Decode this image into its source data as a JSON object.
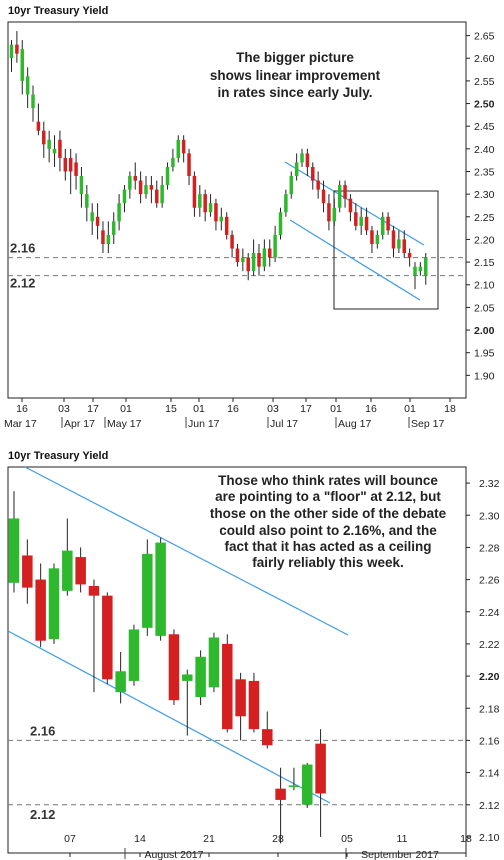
{
  "chart_data": [
    {
      "type": "candlestick",
      "title": "10yr Treasury Yield",
      "xlabel": "",
      "ylabel": "",
      "ylim": [
        1.85,
        2.68
      ],
      "y_ticks": [
        "1.90",
        "1.95",
        "2.00",
        "2.05",
        "2.10",
        "2.15",
        "2.20",
        "2.25",
        "2.30",
        "2.35",
        "2.40",
        "2.45",
        "2.50",
        "2.55",
        "2.60",
        "2.65"
      ],
      "y_ticks_bold": [
        "2.00",
        "2.50"
      ],
      "x_day_ticks": [
        "16",
        "03",
        "17",
        "01",
        "15",
        "01",
        "16",
        "03",
        "17",
        "01",
        "16",
        "01",
        "18"
      ],
      "x_month_labels": [
        "Mar 17",
        "Apr 17",
        "May 17",
        "Jun 17",
        "Jul 17",
        "Aug 17",
        "Sep 17"
      ],
      "annotation": [
        "The bigger picture",
        "shows linear improvement",
        "in rates since early July."
      ],
      "levels": [
        {
          "label": "2.16",
          "value": 2.16
        },
        {
          "label": "2.12",
          "value": 2.12
        }
      ],
      "candles": [
        {
          "o": 2.6,
          "c": 2.63,
          "h": 2.64,
          "l": 2.57
        },
        {
          "o": 2.63,
          "c": 2.61,
          "h": 2.66,
          "l": 2.59
        },
        {
          "o": 2.55,
          "c": 2.62,
          "h": 2.64,
          "l": 2.52
        },
        {
          "o": 2.52,
          "c": 2.56,
          "h": 2.58,
          "l": 2.49
        },
        {
          "o": 2.49,
          "c": 2.52,
          "h": 2.54,
          "l": 2.46
        },
        {
          "o": 2.46,
          "c": 2.44,
          "h": 2.5,
          "l": 2.43
        },
        {
          "o": 2.44,
          "c": 2.41,
          "h": 2.46,
          "l": 2.38
        },
        {
          "o": 2.4,
          "c": 2.42,
          "h": 2.44,
          "l": 2.37
        },
        {
          "o": 2.39,
          "c": 2.4,
          "h": 2.43,
          "l": 2.36
        },
        {
          "o": 2.42,
          "c": 2.38,
          "h": 2.44,
          "l": 2.35
        },
        {
          "o": 2.38,
          "c": 2.35,
          "h": 2.4,
          "l": 2.33
        },
        {
          "o": 2.38,
          "c": 2.35,
          "h": 2.4,
          "l": 2.3
        },
        {
          "o": 2.37,
          "c": 2.34,
          "h": 2.39,
          "l": 2.31
        },
        {
          "o": 2.3,
          "c": 2.34,
          "h": 2.36,
          "l": 2.27
        },
        {
          "o": 2.27,
          "c": 2.3,
          "h": 2.32,
          "l": 2.24
        },
        {
          "o": 2.24,
          "c": 2.26,
          "h": 2.28,
          "l": 2.21
        },
        {
          "o": 2.25,
          "c": 2.23,
          "h": 2.28,
          "l": 2.2
        },
        {
          "o": 2.22,
          "c": 2.19,
          "h": 2.24,
          "l": 2.17
        },
        {
          "o": 2.19,
          "c": 2.21,
          "h": 2.24,
          "l": 2.17
        },
        {
          "o": 2.21,
          "c": 2.24,
          "h": 2.26,
          "l": 2.19
        },
        {
          "o": 2.24,
          "c": 2.28,
          "h": 2.3,
          "l": 2.22
        },
        {
          "o": 2.28,
          "c": 2.31,
          "h": 2.32,
          "l": 2.26
        },
        {
          "o": 2.31,
          "c": 2.34,
          "h": 2.35,
          "l": 2.29
        },
        {
          "o": 2.34,
          "c": 2.33,
          "h": 2.37,
          "l": 2.31
        },
        {
          "o": 2.33,
          "c": 2.3,
          "h": 2.35,
          "l": 2.28
        },
        {
          "o": 2.3,
          "c": 2.32,
          "h": 2.34,
          "l": 2.29
        },
        {
          "o": 2.32,
          "c": 2.31,
          "h": 2.34,
          "l": 2.28
        },
        {
          "o": 2.31,
          "c": 2.28,
          "h": 2.33,
          "l": 2.27
        },
        {
          "o": 2.28,
          "c": 2.32,
          "h": 2.34,
          "l": 2.27
        },
        {
          "o": 2.32,
          "c": 2.36,
          "h": 2.37,
          "l": 2.31
        },
        {
          "o": 2.36,
          "c": 2.38,
          "h": 2.4,
          "l": 2.35
        },
        {
          "o": 2.38,
          "c": 2.42,
          "h": 2.43,
          "l": 2.37
        },
        {
          "o": 2.42,
          "c": 2.39,
          "h": 2.43,
          "l": 2.37
        },
        {
          "o": 2.39,
          "c": 2.34,
          "h": 2.4,
          "l": 2.32
        },
        {
          "o": 2.34,
          "c": 2.27,
          "h": 2.35,
          "l": 2.25
        },
        {
          "o": 2.27,
          "c": 2.3,
          "h": 2.32,
          "l": 2.25
        },
        {
          "o": 2.3,
          "c": 2.26,
          "h": 2.31,
          "l": 2.24
        },
        {
          "o": 2.26,
          "c": 2.28,
          "h": 2.3,
          "l": 2.25
        },
        {
          "o": 2.28,
          "c": 2.24,
          "h": 2.29,
          "l": 2.22
        },
        {
          "o": 2.24,
          "c": 2.25,
          "h": 2.27,
          "l": 2.22
        },
        {
          "o": 2.25,
          "c": 2.21,
          "h": 2.26,
          "l": 2.2
        },
        {
          "o": 2.21,
          "c": 2.18,
          "h": 2.22,
          "l": 2.16
        },
        {
          "o": 2.18,
          "c": 2.15,
          "h": 2.19,
          "l": 2.14
        },
        {
          "o": 2.15,
          "c": 2.16,
          "h": 2.18,
          "l": 2.13
        },
        {
          "o": 2.16,
          "c": 2.13,
          "h": 2.17,
          "l": 2.11
        },
        {
          "o": 2.13,
          "c": 2.17,
          "h": 2.2,
          "l": 2.12
        },
        {
          "o": 2.17,
          "c": 2.14,
          "h": 2.19,
          "l": 2.12
        },
        {
          "o": 2.14,
          "c": 2.18,
          "h": 2.2,
          "l": 2.13
        },
        {
          "o": 2.18,
          "c": 2.16,
          "h": 2.2,
          "l": 2.14
        },
        {
          "o": 2.16,
          "c": 2.21,
          "h": 2.23,
          "l": 2.15
        },
        {
          "o": 2.21,
          "c": 2.26,
          "h": 2.27,
          "l": 2.2
        },
        {
          "o": 2.26,
          "c": 2.3,
          "h": 2.31,
          "l": 2.25
        },
        {
          "o": 2.3,
          "c": 2.34,
          "h": 2.35,
          "l": 2.29
        },
        {
          "o": 2.34,
          "c": 2.37,
          "h": 2.39,
          "l": 2.33
        },
        {
          "o": 2.37,
          "c": 2.39,
          "h": 2.4,
          "l": 2.36
        },
        {
          "o": 2.39,
          "c": 2.36,
          "h": 2.4,
          "l": 2.34
        },
        {
          "o": 2.36,
          "c": 2.33,
          "h": 2.37,
          "l": 2.31
        },
        {
          "o": 2.33,
          "c": 2.31,
          "h": 2.35,
          "l": 2.29
        },
        {
          "o": 2.31,
          "c": 2.28,
          "h": 2.33,
          "l": 2.26
        },
        {
          "o": 2.28,
          "c": 2.24,
          "h": 2.3,
          "l": 2.22
        },
        {
          "o": 2.24,
          "c": 2.27,
          "h": 2.29,
          "l": 2.23
        },
        {
          "o": 2.27,
          "c": 2.32,
          "h": 2.33,
          "l": 2.26
        },
        {
          "o": 2.32,
          "c": 2.29,
          "h": 2.33,
          "l": 2.27
        },
        {
          "o": 2.29,
          "c": 2.26,
          "h": 2.3,
          "l": 2.24
        },
        {
          "o": 2.26,
          "c": 2.23,
          "h": 2.28,
          "l": 2.22
        },
        {
          "o": 2.23,
          "c": 2.25,
          "h": 2.27,
          "l": 2.21
        },
        {
          "o": 2.25,
          "c": 2.22,
          "h": 2.27,
          "l": 2.21
        },
        {
          "o": 2.22,
          "c": 2.19,
          "h": 2.23,
          "l": 2.17
        },
        {
          "o": 2.19,
          "c": 2.21,
          "h": 2.22,
          "l": 2.18
        },
        {
          "o": 2.21,
          "c": 2.25,
          "h": 2.26,
          "l": 2.2
        },
        {
          "o": 2.25,
          "c": 2.22,
          "h": 2.26,
          "l": 2.21
        },
        {
          "o": 2.22,
          "c": 2.18,
          "h": 2.23,
          "l": 2.16
        },
        {
          "o": 2.18,
          "c": 2.2,
          "h": 2.22,
          "l": 2.17
        },
        {
          "o": 2.2,
          "c": 2.17,
          "h": 2.22,
          "l": 2.16
        },
        {
          "o": 2.17,
          "c": 2.16,
          "h": 2.18,
          "l": 2.14
        },
        {
          "o": 2.12,
          "c": 2.14,
          "h": 2.15,
          "l": 2.09
        },
        {
          "o": 2.13,
          "c": 2.14,
          "h": 2.15,
          "l": 2.12
        },
        {
          "o": 2.12,
          "c": 2.16,
          "h": 2.17,
          "l": 2.1
        }
      ]
    },
    {
      "type": "candlestick",
      "title": "10yr Treasury Yield",
      "xlabel": "",
      "ylabel": "",
      "ylim": [
        2.09,
        2.33
      ],
      "y_ticks": [
        "2.10",
        "2.12",
        "2.14",
        "2.16",
        "2.18",
        "2.20",
        "2.22",
        "2.24",
        "2.26",
        "2.28",
        "2.30",
        "2.32"
      ],
      "y_ticks_bold": [
        "2.20"
      ],
      "x_day_ticks": [
        "07",
        "14",
        "21",
        "28",
        "05",
        "11",
        "18"
      ],
      "x_month_labels": [
        "August 2017",
        "September 2017"
      ],
      "annotation": [
        "Those who think rates will bounce",
        "are pointing to a \"floor\" at 2.12, but",
        "those on the other side of the debate",
        "could also point to 2.16%, and the",
        "fact that it has acted as a ceiling",
        "fairly reliably this week."
      ],
      "levels": [
        {
          "label": "2.16",
          "value": 2.16
        },
        {
          "label": "2.12",
          "value": 2.12
        }
      ],
      "candles": [
        {
          "o": 2.258,
          "c": 2.298,
          "h": 2.315,
          "l": 2.252
        },
        {
          "o": 2.275,
          "c": 2.255,
          "h": 2.285,
          "l": 2.245
        },
        {
          "o": 2.26,
          "c": 2.222,
          "h": 2.27,
          "l": 2.218
        },
        {
          "o": 2.223,
          "c": 2.267,
          "h": 2.27,
          "l": 2.22
        },
        {
          "o": 2.253,
          "c": 2.278,
          "h": 2.298,
          "l": 2.25
        },
        {
          "o": 2.274,
          "c": 2.257,
          "h": 2.28,
          "l": 2.252
        },
        {
          "o": 2.256,
          "c": 2.25,
          "h": 2.26,
          "l": 2.19
        },
        {
          "o": 2.25,
          "c": 2.198,
          "h": 2.252,
          "l": 2.195
        },
        {
          "o": 2.19,
          "c": 2.203,
          "h": 2.215,
          "l": 2.183
        },
        {
          "o": 2.197,
          "c": 2.229,
          "h": 2.232,
          "l": 2.194
        },
        {
          "o": 2.23,
          "c": 2.276,
          "h": 2.285,
          "l": 2.225
        },
        {
          "o": 2.225,
          "c": 2.283,
          "h": 2.286,
          "l": 2.222
        },
        {
          "o": 2.226,
          "c": 2.185,
          "h": 2.229,
          "l": 2.182
        },
        {
          "o": 2.197,
          "c": 2.201,
          "h": 2.204,
          "l": 2.163
        },
        {
          "o": 2.187,
          "c": 2.212,
          "h": 2.216,
          "l": 2.182
        },
        {
          "o": 2.193,
          "c": 2.224,
          "h": 2.227,
          "l": 2.19
        },
        {
          "o": 2.22,
          "c": 2.167,
          "h": 2.226,
          "l": 2.165
        },
        {
          "o": 2.198,
          "c": 2.175,
          "h": 2.202,
          "l": 2.16
        },
        {
          "o": 2.197,
          "c": 2.167,
          "h": 2.202,
          "l": 2.165
        },
        {
          "o": 2.167,
          "c": 2.157,
          "h": 2.178,
          "l": 2.155
        },
        {
          "o": 2.13,
          "c": 2.123,
          "h": 2.143,
          "l": 2.096
        },
        {
          "o": 2.131,
          "c": 2.132,
          "h": 2.143,
          "l": 2.129
        },
        {
          "o": 2.12,
          "c": 2.145,
          "h": 2.146,
          "l": 2.118
        },
        {
          "o": 2.158,
          "c": 2.127,
          "h": 2.167,
          "l": 2.1
        }
      ]
    }
  ]
}
